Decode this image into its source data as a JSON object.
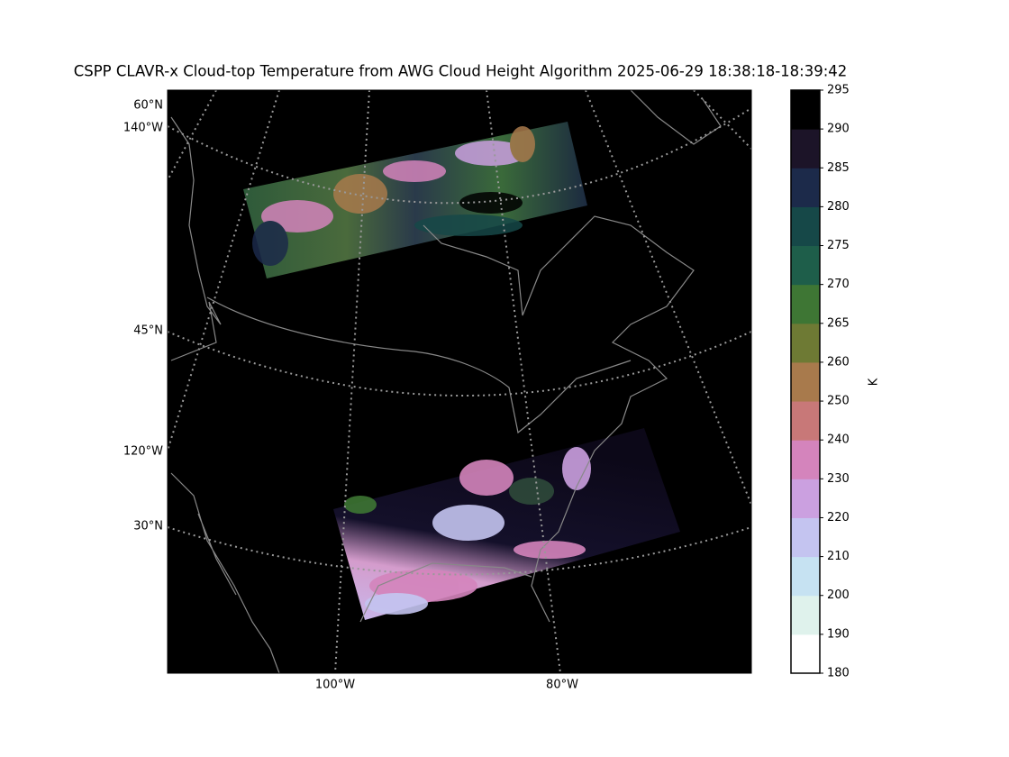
{
  "title": "CSPP CLAVR-x Cloud-top Temperature from AWG Cloud Height Algorithm 2025-06-29 18:38:18-18:39:42",
  "map": {
    "parallel_labels": [
      "60°N",
      "45°N",
      "30°N"
    ],
    "meridian_labels_left": [
      "140°W",
      "120°W"
    ],
    "meridian_labels_bottom": [
      "100°W",
      "80°W"
    ]
  },
  "colorbar": {
    "label": "K",
    "ticks": [
      180,
      190,
      200,
      210,
      220,
      230,
      240,
      250,
      260,
      265,
      270,
      275,
      280,
      285,
      290,
      295
    ],
    "colors": [
      "#ffffff",
      "#dff2ec",
      "#c6e2f2",
      "#c4c4f0",
      "#cba0e0",
      "#d484bc",
      "#c87878",
      "#a87a4c",
      "#6e7a34",
      "#3e7634",
      "#1e5e4a",
      "#164848",
      "#1c2a4a",
      "#1c1428",
      "#000000"
    ]
  }
}
